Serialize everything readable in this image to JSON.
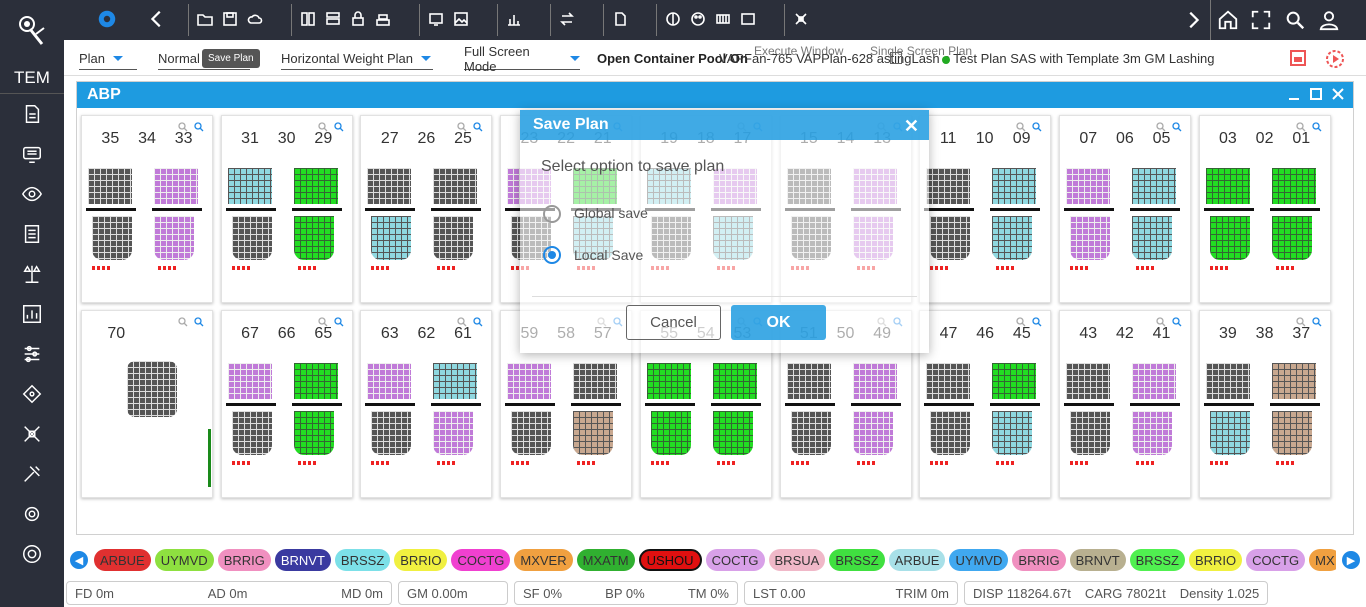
{
  "sidebar": {
    "brand": "TEM"
  },
  "menu": {
    "plan": "Plan",
    "normal": "Normal",
    "weight": "Horizontal Weight Plan",
    "fullscreen": "Full Screen Mode",
    "pool": "Open Container Pool On",
    "info": "VAPFan-765   VAPPlan-628   astingLash   c Test   Plan SAS with Template 3m GM Lashing",
    "overlay_info": "Execute Window        Single Screen Plan"
  },
  "tooltip": "Save Plan",
  "panel": {
    "title": "ABP"
  },
  "bays": [
    {
      "nums": [
        "35",
        "34",
        "33"
      ]
    },
    {
      "nums": [
        "31",
        "30",
        "29"
      ]
    },
    {
      "nums": [
        "27",
        "26",
        "25"
      ]
    },
    {
      "nums": [
        "23",
        "22",
        "21"
      ]
    },
    {
      "nums": [
        "19",
        "18",
        "17"
      ]
    },
    {
      "nums": [
        "15",
        "14",
        "13"
      ]
    },
    {
      "nums": [
        "11",
        "10",
        "09"
      ]
    },
    {
      "nums": [
        "07",
        "06",
        "05"
      ]
    },
    {
      "nums": [
        "03",
        "02",
        "01"
      ]
    },
    {
      "nums": [
        "70",
        "",
        ""
      ]
    },
    {
      "nums": [
        "67",
        "66",
        "65"
      ]
    },
    {
      "nums": [
        "63",
        "62",
        "61"
      ]
    },
    {
      "nums": [
        "59",
        "58",
        "57"
      ]
    },
    {
      "nums": [
        "55",
        "54",
        "53"
      ]
    },
    {
      "nums": [
        "51",
        "50",
        "49"
      ]
    },
    {
      "nums": [
        "47",
        "46",
        "45"
      ]
    },
    {
      "nums": [
        "43",
        "42",
        "41"
      ]
    },
    {
      "nums": [
        "39",
        "38",
        "37"
      ]
    }
  ],
  "dialog": {
    "title": "Save Plan",
    "prompt": "Select option to save plan",
    "global": "Global save",
    "local": "Local Save",
    "cancel": "Cancel",
    "ok": "OK"
  },
  "ports": [
    {
      "l": "ARBUE",
      "c": "#e03030"
    },
    {
      "l": "UYMVD",
      "c": "#8ee040"
    },
    {
      "l": "BRRIG",
      "c": "#f090c0"
    },
    {
      "l": "BRNVT",
      "c": "#3a3aa0",
      "w": 1
    },
    {
      "l": "BRSSZ",
      "c": "#7ce0e8"
    },
    {
      "l": "BRRIO",
      "c": "#f0f040"
    },
    {
      "l": "COCTG",
      "c": "#f040d0"
    },
    {
      "l": "MXVER",
      "c": "#f0a040"
    },
    {
      "l": "MXATM",
      "c": "#30b030"
    },
    {
      "l": "USHOU",
      "c": "#e01010",
      "b": 1
    },
    {
      "l": "COCTG",
      "c": "#d8a0e8"
    },
    {
      "l": "BRSUA",
      "c": "#f0b8c8"
    },
    {
      "l": "BRSSZ",
      "c": "#40e040"
    },
    {
      "l": "ARBUE",
      "c": "#a8e0e8"
    },
    {
      "l": "UYMVD",
      "c": "#40a8f0"
    },
    {
      "l": "BRRIG",
      "c": "#f090c0"
    },
    {
      "l": "BRNVT",
      "c": "#b8b090"
    },
    {
      "l": "BRSSZ",
      "c": "#50f050"
    },
    {
      "l": "BRRIO",
      "c": "#f0f040"
    },
    {
      "l": "COCTG",
      "c": "#d8a0e8"
    },
    {
      "l": "MX",
      "c": "#f0a040"
    }
  ],
  "status": [
    [
      "FD 0m",
      "AD 0m",
      "MD 0m"
    ],
    [
      "GM 0.00m"
    ],
    [
      "SF 0%",
      "BP 0%",
      "TM 0%"
    ],
    [
      "LST 0.00",
      "TRIM 0m"
    ],
    [
      "DISP 118264.67t",
      "CARG 78021t",
      "Density 1.025"
    ]
  ]
}
